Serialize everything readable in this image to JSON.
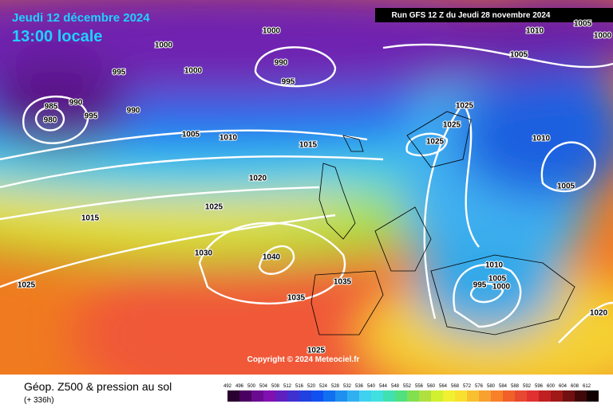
{
  "header": {
    "date": "Jeudi 12 décembre 2024",
    "time": "13:00 locale",
    "run": "Run GFS 12 Z du Jeudi 28 novembre 2024"
  },
  "isobar_labels": [
    "1000",
    "1000",
    "1000",
    "995",
    "990",
    "995",
    "985",
    "990",
    "995",
    "980",
    "990",
    "1005",
    "1010",
    "1015",
    "1020",
    "1025",
    "1015",
    "1030",
    "1040",
    "1035",
    "1035",
    "1025",
    "1025",
    "1025",
    "1025",
    "1025",
    "1010",
    "1005",
    "1005",
    "1000",
    "1010",
    "1005",
    "1010",
    "1005",
    "995",
    "1000",
    "1020"
  ],
  "copyright": "Copyright © 2024 Meteociel.fr",
  "footer": {
    "title": "Géop. Z500 & pression au sol",
    "lead": "(+ 336h)"
  },
  "legend": {
    "values": [
      492,
      496,
      500,
      504,
      508,
      512,
      516,
      520,
      524,
      528,
      532,
      536,
      540,
      544,
      548,
      552,
      556,
      560,
      564,
      568,
      572,
      576,
      580,
      584,
      588,
      592,
      596,
      600,
      604,
      608,
      612
    ]
  }
}
